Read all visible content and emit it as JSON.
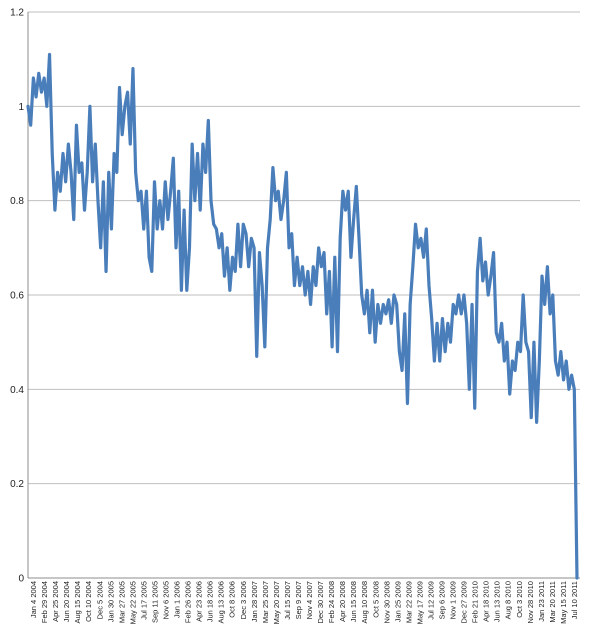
{
  "chart_data": {
    "type": "line",
    "title": "",
    "xlabel": "",
    "ylabel": "",
    "ylim": [
      0,
      1.2
    ],
    "grid": true,
    "legend": "none",
    "line_color": "#4a7ebb",
    "grid_color": "#bfbfbf",
    "y_ticks": [
      "0",
      "0.2",
      "0.4",
      "0.6",
      "0.8",
      "1",
      "1.2"
    ],
    "x_ticks": [
      "Jan 4 2004",
      "Feb 29 2004",
      "Apr 25 2004",
      "Jun 20 2004",
      "Aug 15 2004",
      "Oct 10 2004",
      "Dec 5 2004",
      "Jan 30 2005",
      "Mar 27 2005",
      "May 22 2005",
      "Jul 17 2005",
      "Sep 11 2005",
      "Nov 6 2005",
      "Jan 1 2006",
      "Feb 26 2006",
      "Apr 23 2006",
      "Jun 18 2006",
      "Aug 13 2006",
      "Oct 8 2006",
      "Dec 3 2006",
      "Jan 28 2007",
      "Mar 25 2007",
      "May 20 2007",
      "Jul 15 2007",
      "Sep 9 2007",
      "Nov 4 2007",
      "Dec 30 2007",
      "Feb 24 2008",
      "Apr 20 2008",
      "Jun 15 2008",
      "Aug 10 2008",
      "Oct 5 2008",
      "Nov 30 2008",
      "Jan 25 2009",
      "Mar 22 2009",
      "May 17 2009",
      "Jul 12 2009",
      "Sep 6 2009",
      "Nov 1 2009",
      "Dec 27 2009",
      "Feb 21 2010",
      "Apr 18 2010",
      "Jun 13 2010",
      "Aug 8 2010",
      "Oct 3 2010",
      "Nov 28 2010",
      "Jan 23 2011",
      "Mar 20 2011",
      "May 15 2011",
      "Jul 10 2011"
    ],
    "series": [
      {
        "values": [
          1.0,
          0.96,
          1.06,
          1.02,
          1.07,
          1.03,
          1.06,
          1.0,
          1.11,
          0.9,
          0.78,
          0.86,
          0.82,
          0.9,
          0.84,
          0.92,
          0.86,
          0.76,
          0.96,
          0.86,
          0.88,
          0.78,
          0.86,
          1.0,
          0.84,
          0.92,
          0.8,
          0.7,
          0.84,
          0.65,
          0.86,
          0.74,
          0.9,
          0.86,
          1.04,
          0.94,
          1.0,
          1.03,
          0.92,
          1.08,
          0.86,
          0.8,
          0.82,
          0.74,
          0.82,
          0.68,
          0.65,
          0.84,
          0.74,
          0.8,
          0.74,
          0.84,
          0.76,
          0.82,
          0.89,
          0.7,
          0.82,
          0.61,
          0.78,
          0.61,
          0.7,
          0.92,
          0.8,
          0.9,
          0.78,
          0.92,
          0.86,
          0.97,
          0.8,
          0.75,
          0.74,
          0.7,
          0.73,
          0.64,
          0.7,
          0.61,
          0.68,
          0.65,
          0.75,
          0.66,
          0.75,
          0.73,
          0.66,
          0.72,
          0.7,
          0.47,
          0.69,
          0.62,
          0.49,
          0.7,
          0.76,
          0.87,
          0.8,
          0.82,
          0.76,
          0.8,
          0.86,
          0.7,
          0.73,
          0.62,
          0.68,
          0.62,
          0.66,
          0.6,
          0.65,
          0.58,
          0.66,
          0.62,
          0.7,
          0.66,
          0.69,
          0.56,
          0.65,
          0.49,
          0.68,
          0.48,
          0.72,
          0.82,
          0.78,
          0.82,
          0.68,
          0.76,
          0.83,
          0.72,
          0.6,
          0.56,
          0.61,
          0.52,
          0.61,
          0.5,
          0.58,
          0.54,
          0.58,
          0.56,
          0.59,
          0.54,
          0.6,
          0.58,
          0.48,
          0.44,
          0.56,
          0.37,
          0.58,
          0.66,
          0.75,
          0.7,
          0.72,
          0.68,
          0.74,
          0.62,
          0.55,
          0.46,
          0.54,
          0.46,
          0.55,
          0.48,
          0.54,
          0.5,
          0.58,
          0.56,
          0.6,
          0.56,
          0.6,
          0.54,
          0.4,
          0.58,
          0.36,
          0.65,
          0.72,
          0.63,
          0.67,
          0.6,
          0.64,
          0.69,
          0.52,
          0.5,
          0.54,
          0.46,
          0.5,
          0.39,
          0.46,
          0.44,
          0.5,
          0.48,
          0.6,
          0.5,
          0.48,
          0.34,
          0.5,
          0.33,
          0.46,
          0.64,
          0.58,
          0.66,
          0.56,
          0.6,
          0.46,
          0.43,
          0.48,
          0.42,
          0.46,
          0.4,
          0.43,
          0.4,
          0.0
        ]
      }
    ]
  }
}
